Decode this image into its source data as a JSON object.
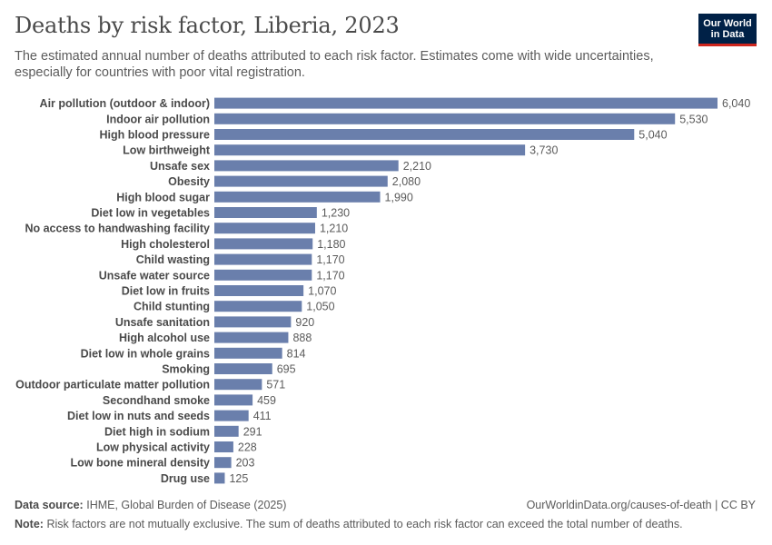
{
  "header": {
    "title": "Deaths by risk factor, Liberia, 2023",
    "subtitle": "The estimated annual number of deaths attributed to each risk factor. Estimates come with wide uncertainties, especially for countries with poor vital registration.",
    "logo_line1": "Our World",
    "logo_line2": "in Data"
  },
  "footer": {
    "source_label": "Data source:",
    "source_text": "IHME, Global Burden of Disease (2025)",
    "url": "OurWorldinData.org/causes-of-death | CC BY",
    "note_label": "Note:",
    "note_text": "Risk factors are not mutually exclusive. The sum of deaths attributed to each risk factor can exceed the total number of deaths."
  },
  "colors": {
    "bar": "#6a7fac",
    "label": "#4a4a4a",
    "value": "#5b5b5b",
    "logo_bg": "#002147",
    "logo_accent": "#ce261e"
  },
  "chart_data": {
    "type": "bar",
    "orientation": "horizontal",
    "categories": [
      "Air pollution (outdoor & indoor)",
      "Indoor air pollution",
      "High blood pressure",
      "Low birthweight",
      "Unsafe sex",
      "Obesity",
      "High blood sugar",
      "Diet low in vegetables",
      "No access to handwashing facility",
      "High cholesterol",
      "Child wasting",
      "Unsafe water source",
      "Diet low in fruits",
      "Child stunting",
      "Unsafe sanitation",
      "High alcohol use",
      "Diet low in whole grains",
      "Smoking",
      "Outdoor particulate matter pollution",
      "Secondhand smoke",
      "Diet low in nuts and seeds",
      "Diet high in sodium",
      "Low physical activity",
      "Low bone mineral density",
      "Drug use"
    ],
    "values": [
      6040,
      5530,
      5040,
      3730,
      2210,
      2080,
      1990,
      1230,
      1210,
      1180,
      1170,
      1170,
      1070,
      1050,
      920,
      888,
      814,
      695,
      571,
      459,
      411,
      291,
      228,
      203,
      125
    ],
    "value_labels": [
      "6,040",
      "5,530",
      "5,040",
      "3,730",
      "2,210",
      "2,080",
      "1,990",
      "1,230",
      "1,210",
      "1,180",
      "1,170",
      "1,170",
      "1,070",
      "1,050",
      "920",
      "888",
      "814",
      "695",
      "571",
      "459",
      "411",
      "291",
      "228",
      "203",
      "125"
    ],
    "xlim": [
      0,
      6040
    ],
    "grid": false,
    "legend": "none"
  }
}
